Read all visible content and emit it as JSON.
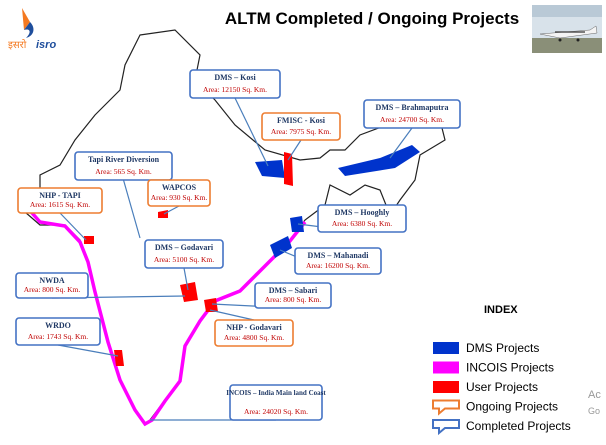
{
  "title": "ALTM Completed / Ongoing Projects",
  "logo": {
    "hindi": "इसरो",
    "english": "isro"
  },
  "callouts": [
    {
      "name": "DMS – Kosi",
      "area": "Area: 12150 Sq. Km.",
      "border_color": "#4472c4"
    },
    {
      "name": "FMISC - Kosi",
      "area": "Area: 7975 Sq. Km.",
      "border_color": "#ed7d31"
    },
    {
      "name": "DMS – Brahmaputra",
      "area": "Area: 24700 Sq. Km.",
      "border_color": "#4472c4"
    },
    {
      "name": "Tapi River Diversion",
      "area": "Area: 565 Sq. Km.",
      "border_color": "#4472c4"
    },
    {
      "name": "WAPCOS",
      "area": "Area: 930 Sq. Km.",
      "border_color": "#ed7d31"
    },
    {
      "name": "NHP - TAPI",
      "area": "Area: 1615 Sq. Km.",
      "border_color": "#ed7d31"
    },
    {
      "name": "DMS – Hooghly",
      "area": "Area: 6380 Sq. Km.",
      "border_color": "#4472c4"
    },
    {
      "name": "DMS – Godavari",
      "area": "Area: 5100 Sq. Km.",
      "border_color": "#4472c4"
    },
    {
      "name": "DMS – Mahanadi",
      "area": "Area: 16200 Sq. Km.",
      "border_color": "#4472c4"
    },
    {
      "name": "NWDA",
      "area": "Area: 800 Sq. Km.",
      "border_color": "#4472c4"
    },
    {
      "name": "DMS – Sabari",
      "area": "Area: 800 Sq. Km.",
      "border_color": "#4472c4"
    },
    {
      "name": "WRDO",
      "area": "Area: 1743 Sq. Km.",
      "border_color": "#4472c4"
    },
    {
      "name": "NHP - Godavari",
      "area": "Area: 4800 Sq. Km.",
      "border_color": "#ed7d31"
    },
    {
      "name": "INCOIS – India Main land Coast",
      "area": "Area: 24020 Sq. Km.",
      "border_color": "#4472c4"
    }
  ],
  "index": {
    "title": "INDEX",
    "items": [
      {
        "label": "DMS Projects",
        "color": "#0033cc",
        "shape": "square"
      },
      {
        "label": "INCOIS Projects",
        "color": "#ff00ff",
        "shape": "square"
      },
      {
        "label": "User Projects",
        "color": "#ff0000",
        "shape": "square"
      },
      {
        "label": "Ongoing Projects",
        "color": "#ed7d31",
        "shape": "callout"
      },
      {
        "label": "Completed Projects",
        "color": "#4472c4",
        "shape": "callout"
      }
    ]
  },
  "watermark": [
    "Ac",
    "Go"
  ]
}
